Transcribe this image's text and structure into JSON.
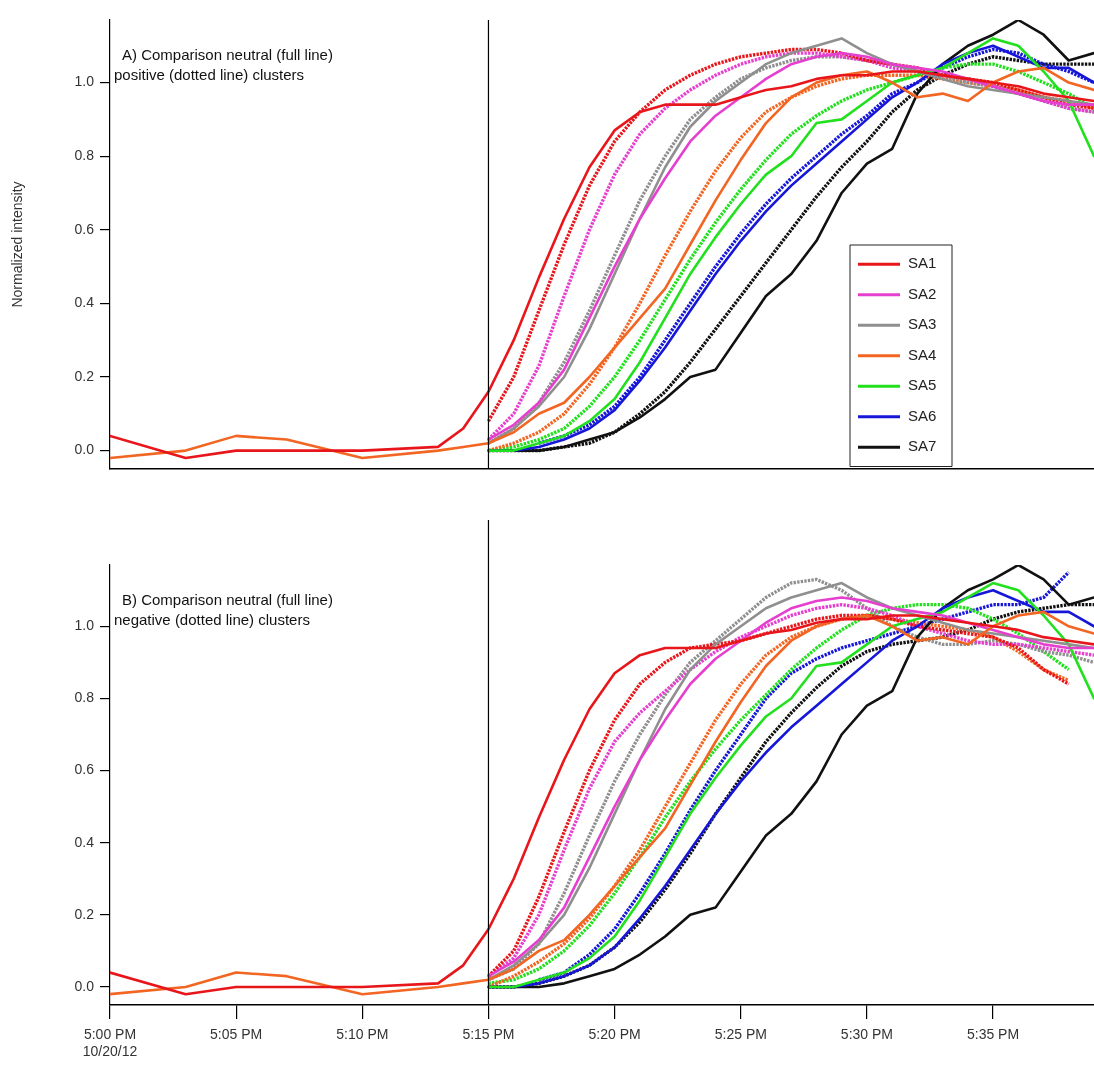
{
  "chart_data": [
    {
      "type": "line",
      "title": "A) Comparison neutral (full line)\npositive (dotted line) clusters",
      "ylabel": "Normalized intensity",
      "legend": "right",
      "tick_labels": "y",
      "xlim": [
        17,
        17.65
      ],
      "ylim": [
        -0.05,
        1.17
      ],
      "yticks": [
        {
          "value": 0,
          "label": "0.0"
        },
        {
          "value": 0.2,
          "label": "0.2"
        },
        {
          "value": 0.4,
          "label": "0.4"
        },
        {
          "value": 0.6,
          "label": "0.6"
        },
        {
          "value": 0.8,
          "label": "0.8"
        },
        {
          "value": 1,
          "label": "1.0"
        }
      ],
      "ref_lines": [
        {
          "axis": "x",
          "value": 17.25,
          "color": "#000000"
        }
      ],
      "x": [
        17,
        17.05,
        17.0833,
        17.1167,
        17.1667,
        17.2167,
        17.2333,
        17.25,
        17.2667,
        17.2833,
        17.3,
        17.3167,
        17.3333,
        17.35,
        17.3667,
        17.3833,
        17.4,
        17.4167,
        17.4333,
        17.45,
        17.4667,
        17.4833,
        17.5,
        17.5167,
        17.5333,
        17.55,
        17.5667,
        17.5833,
        17.6,
        17.6167,
        17.6333,
        17.65
      ],
      "series": [
        {
          "name": "SA1",
          "color": "#e8161b",
          "line_style": "solid",
          "values": [
            0.04,
            -0.02,
            0,
            0,
            0,
            0.01,
            0.06,
            0.16,
            0.3,
            0.47,
            0.63,
            0.77,
            0.87,
            0.92,
            0.94,
            0.94,
            0.94,
            0.96,
            0.98,
            0.99,
            1.01,
            1.02,
            1.02,
            1.03,
            1.03,
            1.02,
            1.01,
            1.0,
            0.99,
            0.97,
            0.96,
            0.95
          ]
        },
        {
          "name": "SA2",
          "color": "#e63fcf",
          "line_style": "solid",
          "values": [
            null,
            null,
            null,
            null,
            null,
            null,
            null,
            0.03,
            0.07,
            0.13,
            0.22,
            0.36,
            0.5,
            0.63,
            0.74,
            0.84,
            0.91,
            0.96,
            1.01,
            1.05,
            1.07,
            1.08,
            1.07,
            1.05,
            1.04,
            1.03,
            1.01,
            0.99,
            0.97,
            0.95,
            0.94,
            0.94
          ]
        },
        {
          "name": "SA3",
          "color": "#8f8f8f",
          "line_style": "solid",
          "values": [
            null,
            null,
            null,
            null,
            null,
            null,
            null,
            0.02,
            0.06,
            0.12,
            0.2,
            0.33,
            0.48,
            0.63,
            0.77,
            0.88,
            0.95,
            1.0,
            1.05,
            1.08,
            1.1,
            1.12,
            1.08,
            1.05,
            1.03,
            1.01,
            0.99,
            0.98,
            0.97,
            0.96,
            0.95,
            0.94
          ]
        },
        {
          "name": "SA4",
          "color": "#f26522",
          "line_style": "solid",
          "values": [
            -0.02,
            0,
            0.04,
            0.03,
            -0.02,
            0,
            0.01,
            0.02,
            0.05,
            0.1,
            0.13,
            0.2,
            0.28,
            0.36,
            0.44,
            0.56,
            0.68,
            0.79,
            0.89,
            0.96,
            1.0,
            1.02,
            1.03,
            1.0,
            0.96,
            0.97,
            0.95,
            1.0,
            1.03,
            1.04,
            1.0,
            0.98
          ]
        },
        {
          "name": "SA5",
          "color": "#22e01e",
          "line_style": "solid",
          "values": [
            null,
            null,
            null,
            null,
            null,
            null,
            null,
            0,
            0,
            0.02,
            0.04,
            0.08,
            0.14,
            0.24,
            0.36,
            0.48,
            0.58,
            0.67,
            0.75,
            0.8,
            0.89,
            0.9,
            0.95,
            1.0,
            1.02,
            1.04,
            1.08,
            1.12,
            1.1,
            1.03,
            0.95,
            0.8
          ]
        },
        {
          "name": "SA6",
          "color": "#1616d9",
          "line_style": "solid",
          "values": [
            null,
            null,
            null,
            null,
            null,
            null,
            null,
            0,
            0,
            0.01,
            0.03,
            0.06,
            0.11,
            0.19,
            0.28,
            0.38,
            0.48,
            0.57,
            0.65,
            0.72,
            0.78,
            0.84,
            0.9,
            0.96,
            1.0,
            1.05,
            1.08,
            1.1,
            1.07,
            1.04,
            1.04,
            1.0
          ]
        },
        {
          "name": "SA7",
          "color": "#111111",
          "line_style": "solid",
          "values": [
            null,
            null,
            null,
            null,
            null,
            null,
            null,
            0,
            0,
            0,
            0.01,
            0.03,
            0.05,
            0.09,
            0.14,
            0.2,
            0.22,
            0.32,
            0.42,
            0.48,
            0.57,
            0.7,
            0.78,
            0.82,
            0.97,
            1.05,
            1.1,
            1.13,
            1.17,
            1.13,
            1.06,
            1.08
          ]
        },
        {
          "color": "#e8161b",
          "line_style": "dotted",
          "values": [
            null,
            null,
            null,
            null,
            null,
            null,
            null,
            0.08,
            0.2,
            0.38,
            0.56,
            0.72,
            0.84,
            0.92,
            0.98,
            1.02,
            1.05,
            1.07,
            1.08,
            1.09,
            1.09,
            1.08,
            1.06,
            1.05,
            1.04,
            1.02,
            1.01,
            1.0,
            0.98,
            0.96,
            0.94,
            0.93
          ]
        },
        {
          "color": "#e63fcf",
          "line_style": "dotted",
          "values": [
            null,
            null,
            null,
            null,
            null,
            null,
            null,
            0.03,
            0.1,
            0.23,
            0.42,
            0.6,
            0.75,
            0.86,
            0.93,
            0.98,
            1.02,
            1.05,
            1.07,
            1.08,
            1.08,
            1.07,
            1.06,
            1.04,
            1.03,
            1.02,
            1.01,
            0.99,
            0.97,
            0.95,
            0.93,
            0.92
          ]
        },
        {
          "color": "#8f8f8f",
          "line_style": "dotted",
          "values": [
            null,
            null,
            null,
            null,
            null,
            null,
            null,
            0.02,
            0.06,
            0.13,
            0.24,
            0.38,
            0.53,
            0.68,
            0.8,
            0.9,
            0.96,
            1.01,
            1.04,
            1.06,
            1.07,
            1.07,
            1.06,
            1.05,
            1.03,
            1.02,
            1.0,
            0.99,
            0.97,
            0.95,
            0.93,
            0.92
          ]
        },
        {
          "color": "#f26522",
          "line_style": "dotted",
          "values": [
            null,
            null,
            null,
            null,
            null,
            null,
            null,
            0,
            0.02,
            0.05,
            0.1,
            0.18,
            0.28,
            0.4,
            0.53,
            0.65,
            0.76,
            0.85,
            0.92,
            0.96,
            0.99,
            1.01,
            1.02,
            1.02,
            1.02,
            1.01,
            1.0,
            0.99,
            0.98,
            0.96,
            0.95,
            0.93
          ]
        },
        {
          "color": "#22e01e",
          "line_style": "dotted",
          "values": [
            null,
            null,
            null,
            null,
            null,
            null,
            null,
            0,
            0.01,
            0.03,
            0.06,
            0.12,
            0.2,
            0.3,
            0.41,
            0.52,
            0.62,
            0.71,
            0.79,
            0.86,
            0.91,
            0.95,
            0.98,
            1.0,
            1.02,
            1.04,
            1.05,
            1.05,
            1.03,
            1.0,
            0.97,
            0.93
          ]
        },
        {
          "color": "#1616d9",
          "line_style": "dotted",
          "values": [
            null,
            null,
            null,
            null,
            null,
            null,
            null,
            null,
            null,
            0.02,
            0.04,
            0.07,
            0.12,
            0.2,
            0.3,
            0.4,
            0.5,
            0.59,
            0.67,
            0.74,
            0.8,
            0.86,
            0.91,
            0.97,
            1.0,
            1.04,
            1.07,
            1.09,
            1.08,
            1.05,
            1.03,
            1.0
          ]
        },
        {
          "color": "#111111",
          "line_style": "dotted",
          "values": [
            null,
            null,
            null,
            null,
            null,
            null,
            null,
            0,
            0,
            0,
            0.01,
            0.02,
            0.05,
            0.1,
            0.16,
            0.24,
            0.33,
            0.42,
            0.51,
            0.6,
            0.69,
            0.77,
            0.84,
            0.92,
            0.98,
            1.02,
            1.05,
            1.07,
            1.06,
            1.05,
            1.05,
            1.05
          ]
        }
      ]
    },
    {
      "type": "line",
      "title": "B) Comparison neutral (full line)\nnegative (dotted line) clusters",
      "xlim": [
        17,
        17.65
      ],
      "xticks": [
        {
          "value": 17,
          "label": "5:00 PM\n10/20/12"
        },
        {
          "value": 17.0833,
          "label": "5:05 PM"
        },
        {
          "value": 17.1667,
          "label": "5:10 PM"
        },
        {
          "value": 17.25,
          "label": "5:15 PM"
        },
        {
          "value": 17.3333,
          "label": "5:20 PM"
        },
        {
          "value": 17.4167,
          "label": "5:25 PM"
        },
        {
          "value": 17.5,
          "label": "5:30 PM"
        },
        {
          "value": 17.5833,
          "label": "5:35 PM"
        }
      ],
      "ylim": [
        -0.05,
        1.17
      ],
      "yticks": [
        {
          "value": 0,
          "label": "0.0"
        },
        {
          "value": 0.2,
          "label": "0.2"
        },
        {
          "value": 0.4,
          "label": "0.4"
        },
        {
          "value": 0.6,
          "label": "0.6"
        },
        {
          "value": 0.8,
          "label": "0.8"
        },
        {
          "value": 1,
          "label": "1.0"
        }
      ],
      "ref_lines": [
        {
          "axis": "x",
          "value": 17.25,
          "color": "#000000"
        }
      ],
      "x": [
        17,
        17.05,
        17.0833,
        17.1167,
        17.1667,
        17.2167,
        17.2333,
        17.25,
        17.2667,
        17.2833,
        17.3,
        17.3167,
        17.3333,
        17.35,
        17.3667,
        17.3833,
        17.4,
        17.4167,
        17.4333,
        17.45,
        17.4667,
        17.4833,
        17.5,
        17.5167,
        17.5333,
        17.55,
        17.5667,
        17.5833,
        17.6,
        17.6167,
        17.6333,
        17.65
      ],
      "series": [
        {
          "color": "#e8161b",
          "line_style": "solid",
          "values": [
            0.04,
            -0.02,
            0,
            0,
            0,
            0.01,
            0.06,
            0.16,
            0.3,
            0.47,
            0.63,
            0.77,
            0.87,
            0.92,
            0.94,
            0.94,
            0.94,
            0.96,
            0.98,
            0.99,
            1.01,
            1.02,
            1.02,
            1.03,
            1.03,
            1.02,
            1.01,
            1.0,
            0.99,
            0.97,
            0.96,
            0.95
          ]
        },
        {
          "color": "#e63fcf",
          "line_style": "solid",
          "values": [
            null,
            null,
            null,
            null,
            null,
            null,
            null,
            0.03,
            0.07,
            0.13,
            0.22,
            0.36,
            0.5,
            0.63,
            0.74,
            0.84,
            0.91,
            0.96,
            1.01,
            1.05,
            1.07,
            1.08,
            1.07,
            1.05,
            1.04,
            1.03,
            1.01,
            0.99,
            0.97,
            0.95,
            0.94,
            0.94
          ]
        },
        {
          "color": "#8f8f8f",
          "line_style": "solid",
          "values": [
            null,
            null,
            null,
            null,
            null,
            null,
            null,
            0.02,
            0.06,
            0.12,
            0.2,
            0.33,
            0.48,
            0.63,
            0.77,
            0.88,
            0.95,
            1.0,
            1.05,
            1.08,
            1.1,
            1.12,
            1.08,
            1.05,
            1.03,
            1.01,
            0.99,
            0.98,
            0.97,
            0.96,
            0.95,
            0.94
          ]
        },
        {
          "color": "#f26522",
          "line_style": "solid",
          "values": [
            -0.02,
            0,
            0.04,
            0.03,
            -0.02,
            0,
            0.01,
            0.02,
            0.05,
            0.1,
            0.13,
            0.2,
            0.28,
            0.36,
            0.44,
            0.56,
            0.68,
            0.79,
            0.89,
            0.96,
            1.0,
            1.02,
            1.03,
            1.0,
            0.96,
            0.97,
            0.95,
            1.0,
            1.03,
            1.04,
            1.0,
            0.98
          ]
        },
        {
          "color": "#22e01e",
          "line_style": "solid",
          "values": [
            null,
            null,
            null,
            null,
            null,
            null,
            null,
            0,
            0,
            0.02,
            0.04,
            0.08,
            0.14,
            0.24,
            0.36,
            0.48,
            0.58,
            0.67,
            0.75,
            0.8,
            0.89,
            0.9,
            0.95,
            1.0,
            1.02,
            1.04,
            1.08,
            1.12,
            1.1,
            1.03,
            0.95,
            0.8
          ]
        },
        {
          "color": "#1616d9",
          "line_style": "solid",
          "values": [
            null,
            null,
            null,
            null,
            null,
            null,
            null,
            0,
            0,
            0.01,
            0.03,
            0.06,
            0.11,
            0.19,
            0.28,
            0.38,
            0.48,
            0.57,
            0.65,
            0.72,
            0.78,
            0.84,
            0.9,
            0.96,
            1.0,
            1.05,
            1.08,
            1.1,
            1.07,
            1.04,
            1.04,
            1.0
          ]
        },
        {
          "color": "#111111",
          "line_style": "solid",
          "values": [
            null,
            null,
            null,
            null,
            null,
            null,
            null,
            0,
            0,
            0,
            0.01,
            0.03,
            0.05,
            0.09,
            0.14,
            0.2,
            0.22,
            0.32,
            0.42,
            0.48,
            0.57,
            0.7,
            0.78,
            0.82,
            0.97,
            1.05,
            1.1,
            1.13,
            1.17,
            1.13,
            1.06,
            1.08
          ]
        },
        {
          "color": "#e8161b",
          "line_style": "dotted",
          "values": [
            null,
            null,
            null,
            null,
            null,
            null,
            null,
            0.03,
            0.1,
            0.25,
            0.43,
            0.6,
            0.74,
            0.84,
            0.9,
            0.94,
            0.95,
            0.96,
            0.98,
            1.0,
            1.02,
            1.03,
            1.03,
            1.02,
            1.0,
            0.99,
            0.98,
            0.97,
            0.94,
            0.88,
            0.84,
            null
          ]
        },
        {
          "color": "#e63fcf",
          "line_style": "dotted",
          "values": [
            null,
            null,
            null,
            null,
            null,
            null,
            null,
            0.03,
            0.08,
            0.2,
            0.38,
            0.55,
            0.68,
            0.76,
            0.82,
            0.88,
            0.93,
            0.97,
            1.0,
            1.03,
            1.05,
            1.06,
            1.05,
            1.03,
            1.0,
            0.98,
            0.96,
            0.95,
            0.95,
            0.94,
            0.93,
            0.92
          ]
        },
        {
          "color": "#8f8f8f",
          "line_style": "dotted",
          "values": [
            null,
            null,
            null,
            null,
            null,
            null,
            null,
            0.02,
            0.05,
            0.12,
            0.26,
            0.42,
            0.57,
            0.7,
            0.81,
            0.9,
            0.96,
            1.02,
            1.08,
            1.12,
            1.13,
            1.1,
            1.05,
            1.0,
            0.97,
            0.95,
            0.95,
            0.96,
            0.95,
            0.93,
            0.92,
            0.9
          ]
        },
        {
          "color": "#f26522",
          "line_style": "dotted",
          "values": [
            null,
            null,
            null,
            null,
            null,
            null,
            null,
            0,
            0.03,
            0.07,
            0.12,
            0.19,
            0.28,
            0.38,
            0.5,
            0.62,
            0.74,
            0.84,
            0.92,
            0.97,
            1.0,
            1.02,
            1.03,
            1.02,
            1.01,
            1.0,
            0.99,
            0.97,
            0.93,
            0.88,
            0.85,
            null
          ]
        },
        {
          "color": "#22e01e",
          "line_style": "dotted",
          "values": [
            null,
            null,
            null,
            null,
            null,
            null,
            null,
            0.01,
            0.02,
            0.05,
            0.1,
            0.17,
            0.26,
            0.36,
            0.47,
            0.57,
            0.66,
            0.74,
            0.81,
            0.88,
            0.94,
            0.99,
            1.03,
            1.05,
            1.06,
            1.06,
            1.05,
            1.02,
            0.98,
            0.93,
            0.88,
            null
          ]
        },
        {
          "color": "#1616d9",
          "line_style": "dotted",
          "values": [
            null,
            null,
            null,
            null,
            null,
            null,
            null,
            null,
            null,
            0.02,
            0.04,
            0.09,
            0.16,
            0.26,
            0.37,
            0.49,
            0.6,
            0.7,
            0.8,
            0.87,
            0.91,
            0.94,
            0.96,
            0.98,
            1.0,
            1.02,
            1.04,
            1.06,
            1.06,
            1.08,
            1.15,
            null
          ]
        },
        {
          "color": "#111111",
          "line_style": "dotted",
          "values": [
            null,
            null,
            null,
            null,
            null,
            null,
            null,
            0,
            0,
            0.01,
            0.03,
            0.06,
            0.11,
            0.18,
            0.27,
            0.37,
            0.48,
            0.58,
            0.68,
            0.76,
            0.83,
            0.89,
            0.93,
            0.95,
            0.96,
            0.97,
            0.99,
            1.02,
            1.04,
            1.05,
            1.06,
            1.06
          ]
        }
      ]
    }
  ]
}
